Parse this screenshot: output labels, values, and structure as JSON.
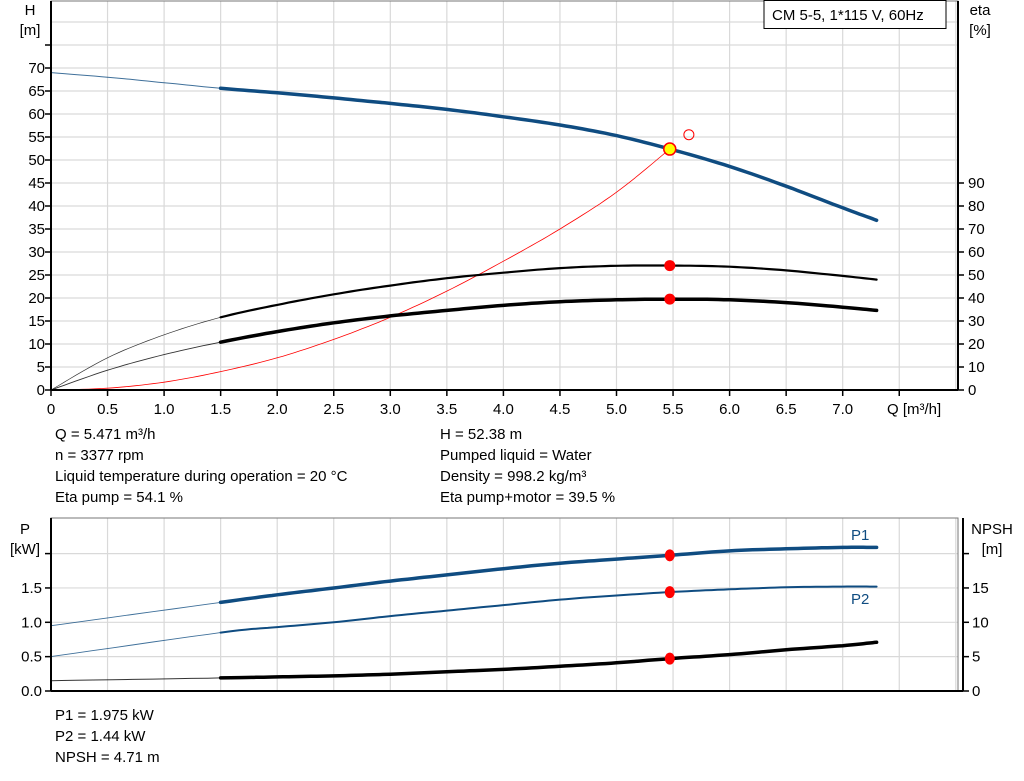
{
  "chart_data": [
    {
      "type": "line",
      "title": "CM 5-5, 1*115 V, 60Hz",
      "xlabel": "Q [m³/h]",
      "ylabel": {
        "name": "H",
        "unit": "[m]"
      },
      "y2label": {
        "name": "eta",
        "unit": "[%]"
      },
      "xlim": [
        0,
        8.0
      ],
      "ylim": [
        0,
        85
      ],
      "y2lim": [
        0,
        170
      ],
      "grid": true,
      "x_ticks": [
        "0",
        "0.5",
        "1.0",
        "1.5",
        "2.0",
        "2.5",
        "3.0",
        "3.5",
        "4.0",
        "4.5",
        "5.0",
        "5.5",
        "6.0",
        "6.5",
        "7.0"
      ],
      "y_ticks": [
        "0",
        "5",
        "10",
        "15",
        "20",
        "25",
        "30",
        "35",
        "40",
        "45",
        "50",
        "55",
        "60",
        "65",
        "70"
      ],
      "y2_ticks": [
        "0",
        "10",
        "20",
        "30",
        "40",
        "50",
        "60",
        "70",
        "80",
        "90"
      ],
      "series": [
        {
          "id": "head",
          "axis": "H",
          "color": "#0f4c81",
          "x": [
            0,
            0.5,
            1.0,
            1.5,
            2.0,
            2.5,
            3.0,
            3.5,
            4.0,
            4.5,
            5.0,
            5.5,
            6.0,
            6.5,
            7.0,
            7.3
          ],
          "y": [
            69,
            68,
            66.8,
            65.6,
            64.6,
            63.5,
            62.3,
            61,
            59.4,
            57.6,
            55.3,
            52.2,
            48.6,
            44.3,
            39.6,
            36.9
          ]
        },
        {
          "id": "eta-pump",
          "axis": "eta",
          "color": "#000000",
          "x": [
            0,
            0.5,
            1.0,
            1.5,
            2.0,
            2.5,
            3.0,
            3.5,
            4.0,
            4.5,
            5.0,
            5.5,
            6.0,
            6.5,
            7.0,
            7.3
          ],
          "y": [
            0,
            14,
            24,
            31.6,
            37,
            41.6,
            45.4,
            48.6,
            51,
            53,
            54,
            54.1,
            53.6,
            52,
            49.6,
            48
          ]
        },
        {
          "id": "eta-pump-motor",
          "axis": "eta",
          "color": "#000000",
          "x": [
            0,
            0.5,
            1.0,
            1.5,
            2.0,
            2.5,
            3.0,
            3.5,
            4.0,
            4.5,
            5.0,
            5.5,
            6.0,
            6.5,
            7.0,
            7.3
          ],
          "y": [
            0,
            8.6,
            15.4,
            20.8,
            25.4,
            29.2,
            32.2,
            34.6,
            36.8,
            38.4,
            39.2,
            39.5,
            39.2,
            38,
            36,
            34.6
          ]
        },
        {
          "id": "system-curve",
          "axis": "H",
          "color": "#ff0000",
          "x": [
            0,
            0.5,
            1.0,
            1.5,
            2.0,
            2.5,
            3.0,
            3.5,
            4.0,
            4.5,
            5.0,
            5.471
          ],
          "y": [
            0,
            0.4,
            1.7,
            4,
            7,
            11,
            15.8,
            21.5,
            28,
            35,
            43,
            52.38
          ]
        }
      ],
      "duty_point": {
        "Q": 5.471,
        "H": 52.38,
        "eta_pump": 54.1,
        "eta_pump_motor": 39.5
      },
      "requested_point": {
        "Q": 5.64,
        "H": 55.5
      }
    },
    {
      "type": "line",
      "ylabel": {
        "name": "P",
        "unit": "[kW]"
      },
      "y2label": {
        "name": "NPSH",
        "unit": "[m]"
      },
      "xlim": [
        0,
        8.0
      ],
      "ylim": [
        0,
        2.5
      ],
      "y2lim": [
        0,
        25
      ],
      "grid": true,
      "y_ticks": [
        "0.0",
        "0.5",
        "1.0",
        "1.5"
      ],
      "y2_ticks": [
        "0",
        "5",
        "10",
        "15"
      ],
      "series": [
        {
          "id": "P1",
          "name": "P1",
          "axis": "P",
          "color": "#0f4c81",
          "x": [
            0,
            1.5,
            2.0,
            2.5,
            3.0,
            3.5,
            4.0,
            4.5,
            5.0,
            5.471,
            6.0,
            6.5,
            7.0,
            7.3
          ],
          "y": [
            0.95,
            1.29,
            1.4,
            1.5,
            1.6,
            1.69,
            1.78,
            1.86,
            1.92,
            1.975,
            2.04,
            2.07,
            2.09,
            2.09
          ]
        },
        {
          "id": "P2",
          "name": "P2",
          "axis": "P",
          "color": "#0f4c81",
          "x": [
            0,
            1.5,
            2.0,
            2.5,
            3.0,
            3.5,
            4.0,
            4.5,
            5.0,
            5.471,
            6.0,
            6.5,
            7.0,
            7.3
          ],
          "y": [
            0.5,
            0.85,
            0.93,
            1.0,
            1.09,
            1.17,
            1.25,
            1.33,
            1.39,
            1.44,
            1.48,
            1.51,
            1.52,
            1.52
          ]
        },
        {
          "id": "NPSH",
          "axis": "NPSH",
          "color": "#000000",
          "x": [
            0,
            1.5,
            2.0,
            2.5,
            3.0,
            3.5,
            4.0,
            4.5,
            5.0,
            5.471,
            6.0,
            6.5,
            7.0,
            7.3
          ],
          "y": [
            1.5,
            1.9,
            2.05,
            2.2,
            2.45,
            2.8,
            3.15,
            3.6,
            4.1,
            4.71,
            5.3,
            6.0,
            6.6,
            7.1
          ]
        }
      ],
      "duty_point": {
        "Q": 5.471,
        "P1": 1.975,
        "P2": 1.44,
        "NPSH": 4.71
      }
    }
  ],
  "info_left": [
    "Q = 5.471 m³/h",
    "n = 3377 rpm",
    "Liquid temperature during operation = 20 °C",
    "Eta pump = 54.1 %"
  ],
  "info_right": [
    "H = 52.38 m",
    "Pumped liquid = Water",
    "Density = 998.2 kg/m³",
    "Eta pump+motor = 39.5 %"
  ],
  "info_bottom": [
    "P1 = 1.975 kW",
    "P2 = 1.44 kW",
    "NPSH = 4.71 m"
  ],
  "colors": {
    "head": "#0f4c81",
    "duty_marker": "#ff0000",
    "duty_fill": "#ffff00",
    "grid": "#d9d9d9"
  }
}
